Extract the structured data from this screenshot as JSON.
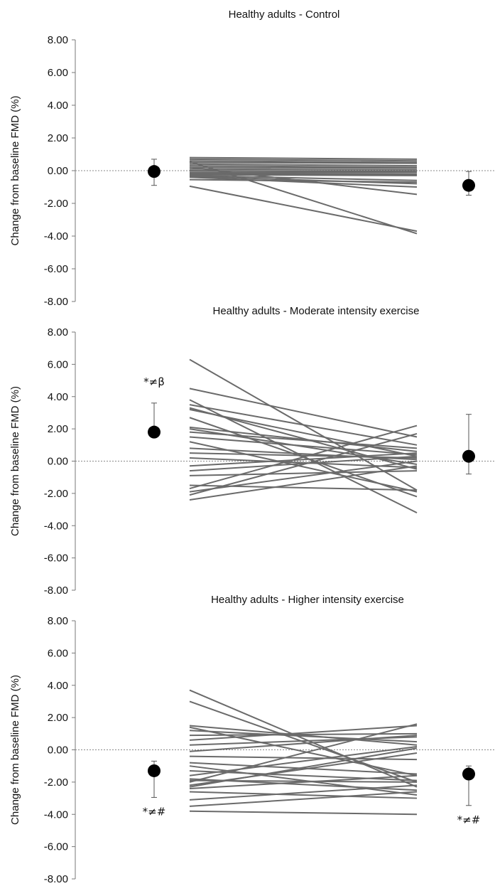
{
  "chart_data": [
    {
      "type": "line",
      "title": "Healthy adults - Control",
      "ylabel": "Change from baseline FMD (%)",
      "ylim": [
        -8,
        8
      ],
      "y_ticks": [
        "8.00",
        "6.00",
        "4.00",
        "2.00",
        "0.00",
        "-2.00",
        "-4.00",
        "-6.00",
        "-8.00"
      ],
      "baseline": 0,
      "pre_summary": {
        "mean": -0.05,
        "err_low": -0.9,
        "err_high": 0.7,
        "annotation": "",
        "annotation_pos": "above"
      },
      "post_summary": {
        "mean": -0.9,
        "err_low": -1.5,
        "err_high": -0.05,
        "annotation": "",
        "annotation_pos": "below"
      },
      "individuals": [
        [
          0.8,
          0.7
        ],
        [
          0.7,
          0.6
        ],
        [
          0.6,
          0.5
        ],
        [
          0.5,
          0.45
        ],
        [
          0.4,
          0.3
        ],
        [
          0.3,
          0.2
        ],
        [
          0.2,
          0.15
        ],
        [
          0.1,
          0.05
        ],
        [
          0.0,
          -0.05
        ],
        [
          -0.1,
          -0.1
        ],
        [
          -0.15,
          -0.2
        ],
        [
          -0.2,
          -0.25
        ],
        [
          -0.25,
          -0.3
        ],
        [
          -0.3,
          -0.6
        ],
        [
          -0.35,
          -0.8
        ],
        [
          -0.4,
          -1.0
        ],
        [
          -0.55,
          -0.7
        ],
        [
          0.55,
          -3.85
        ],
        [
          -0.95,
          -3.7
        ],
        [
          0.2,
          -1.45
        ]
      ]
    },
    {
      "type": "line",
      "title": "Healthy adults - Moderate intensity exercise",
      "ylabel": "Change from baseline FMD (%)",
      "ylim": [
        -8,
        8
      ],
      "y_ticks": [
        "8.00",
        "6.00",
        "4.00",
        "2.00",
        "0.00",
        "-2.00",
        "-4.00",
        "-6.00",
        "-8.00"
      ],
      "baseline": 0,
      "pre_summary": {
        "mean": 1.8,
        "err_low": 1.8,
        "err_high": 3.6,
        "annotation": "*≠β",
        "annotation_pos": "above"
      },
      "post_summary": {
        "mean": 0.3,
        "err_low": -0.8,
        "err_high": 2.9,
        "annotation": "",
        "annotation_pos": "above"
      },
      "individuals": [
        [
          6.3,
          -1.8
        ],
        [
          4.5,
          1.5
        ],
        [
          3.8,
          -3.2
        ],
        [
          3.5,
          1.0
        ],
        [
          3.3,
          -0.5
        ],
        [
          3.2,
          0.3
        ],
        [
          2.7,
          -2.2
        ],
        [
          2.1,
          0.6
        ],
        [
          2.0,
          -0.2
        ],
        [
          1.8,
          0.8
        ],
        [
          1.5,
          0.4
        ],
        [
          1.2,
          -1.9
        ],
        [
          0.8,
          0.1
        ],
        [
          0.5,
          0.2
        ],
        [
          0.2,
          -0.4
        ],
        [
          -0.3,
          0.5
        ],
        [
          -0.6,
          0.3
        ],
        [
          -0.9,
          -0.6
        ],
        [
          -1.5,
          -1.8
        ],
        [
          -1.7,
          2.2
        ],
        [
          -1.9,
          0.0
        ],
        [
          -2.1,
          1.7
        ],
        [
          -2.4,
          -0.3
        ]
      ]
    },
    {
      "type": "line",
      "title": "Healthy adults - Higher intensity exercise",
      "ylabel": "Change from baseline FMD (%)",
      "ylim": [
        -8,
        8
      ],
      "y_ticks": [
        "8.00",
        "6.00",
        "4.00",
        "2.00",
        "0.00",
        "-2.00",
        "-4.00",
        "-6.00",
        "-8.00"
      ],
      "baseline": 0,
      "pre_summary": {
        "mean": -1.3,
        "err_low": -2.95,
        "err_high": -0.7,
        "annotation": "*≠#",
        "annotation_pos": "below"
      },
      "post_summary": {
        "mean": -1.5,
        "err_low": -3.45,
        "err_high": -1.0,
        "annotation": "*≠#",
        "annotation_pos": "below"
      },
      "individuals": [
        [
          3.7,
          -2.3
        ],
        [
          3.0,
          -2.0
        ],
        [
          1.5,
          0.3
        ],
        [
          1.4,
          -1.6
        ],
        [
          1.2,
          0.5
        ],
        [
          0.9,
          1.0
        ],
        [
          0.6,
          1.5
        ],
        [
          0.3,
          0.8
        ],
        [
          -0.1,
          0.9
        ],
        [
          -0.4,
          -0.6
        ],
        [
          -0.8,
          -1.5
        ],
        [
          -1.0,
          -2.8
        ],
        [
          -1.3,
          -1.9
        ],
        [
          -1.6,
          0.2
        ],
        [
          -1.8,
          -2.5
        ],
        [
          -2.0,
          1.6
        ],
        [
          -2.2,
          -0.2
        ],
        [
          -2.4,
          -1.6
        ],
        [
          -2.6,
          -3.0
        ],
        [
          -3.1,
          -2.2
        ],
        [
          -3.5,
          -2.6
        ],
        [
          -3.8,
          -4.0
        ],
        [
          -2.3,
          0.1
        ],
        [
          -1.9,
          -2.0
        ]
      ]
    }
  ]
}
